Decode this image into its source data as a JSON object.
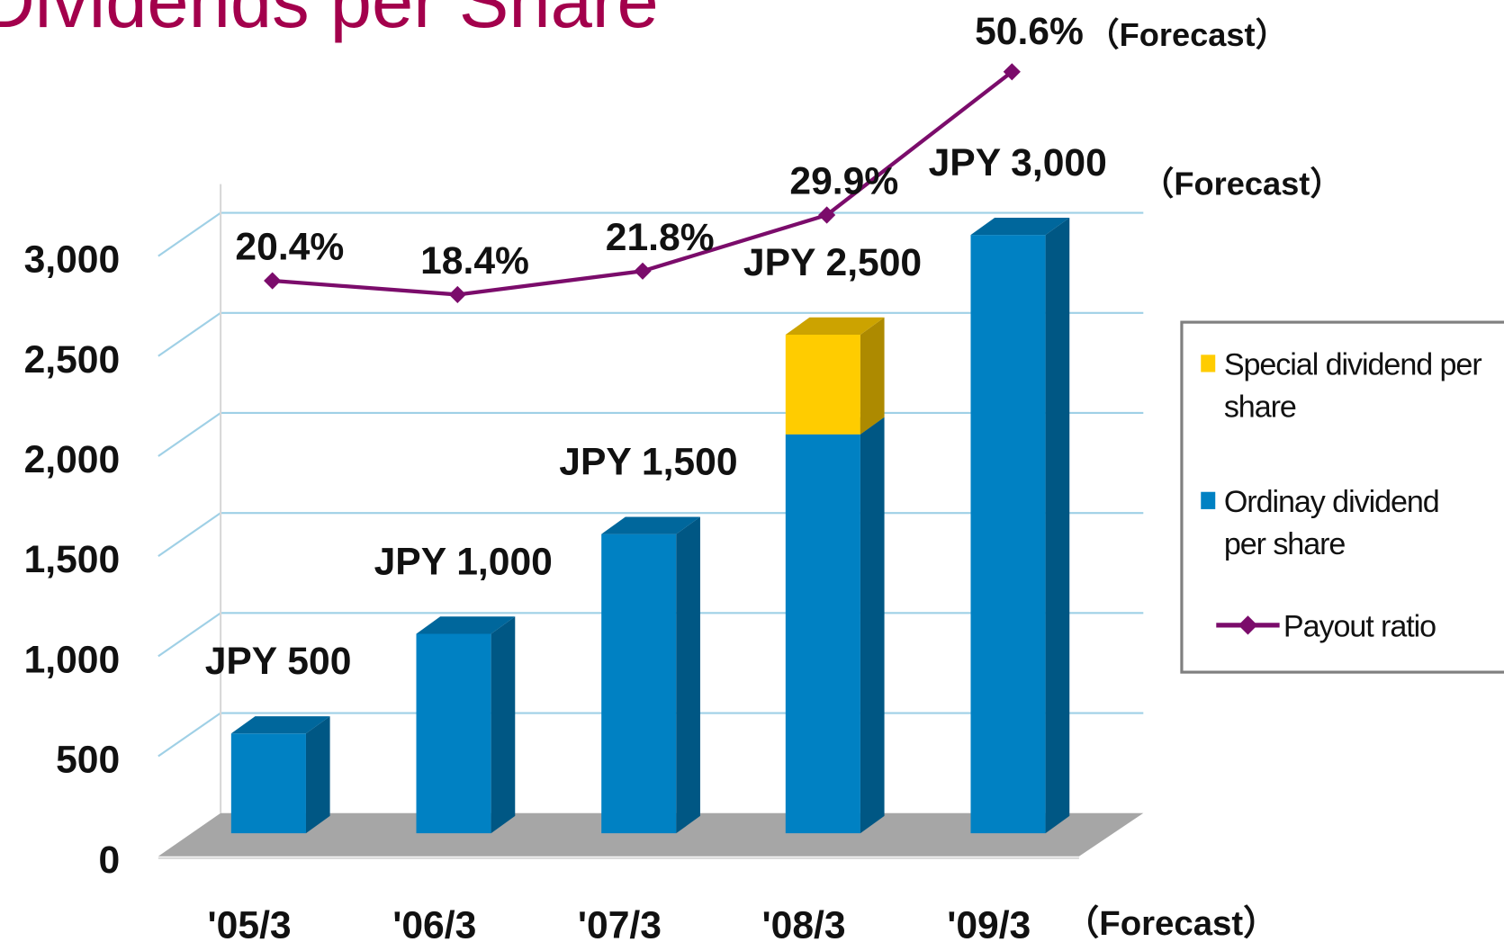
{
  "chart_data": {
    "type": "bar",
    "title": "Dividends per Share",
    "categories": [
      "'05/3",
      "'06/3",
      "'07/3",
      "'08/3",
      "'09/3"
    ],
    "series": [
      {
        "name": "Ordinay dividend per share",
        "color": "#0081c3",
        "values": [
          500,
          1000,
          1500,
          2000,
          3000
        ]
      },
      {
        "name": "Special dividend per share",
        "color": "#ffcc00",
        "values": [
          0,
          0,
          0,
          500,
          0
        ]
      },
      {
        "name": "Payout ratio",
        "color": "#7b0c6b",
        "type": "line",
        "axis": "y2",
        "values": [
          20.4,
          18.4,
          21.8,
          29.9,
          50.6
        ],
        "value_labels": [
          "20.4%",
          "18.4%",
          "21.8%",
          "29.9%",
          "50.6%"
        ]
      }
    ],
    "bar_labels": [
      "JPY 500",
      "JPY 1,000",
      "JPY 1,500",
      "JPY 2,500",
      "JPY 3,000"
    ],
    "annotations": [
      "（Forecast）",
      "（Forecast）",
      "（Forecast）"
    ],
    "stacked": true,
    "ylim": [
      0,
      3000
    ],
    "yticks": [
      0,
      {
        "value": 500,
        "label": "500"
      },
      {
        "value": 1000,
        "label": "1,000"
      },
      {
        "value": 1500,
        "label": "1,500"
      },
      {
        "value": 2000,
        "label": "2,000"
      },
      {
        "value": 2500,
        "label": "2,500"
      },
      {
        "value": 3000,
        "label": "3,000"
      }
    ],
    "y2lim": [
      0,
      60
    ],
    "grid": true,
    "legend": "right"
  }
}
